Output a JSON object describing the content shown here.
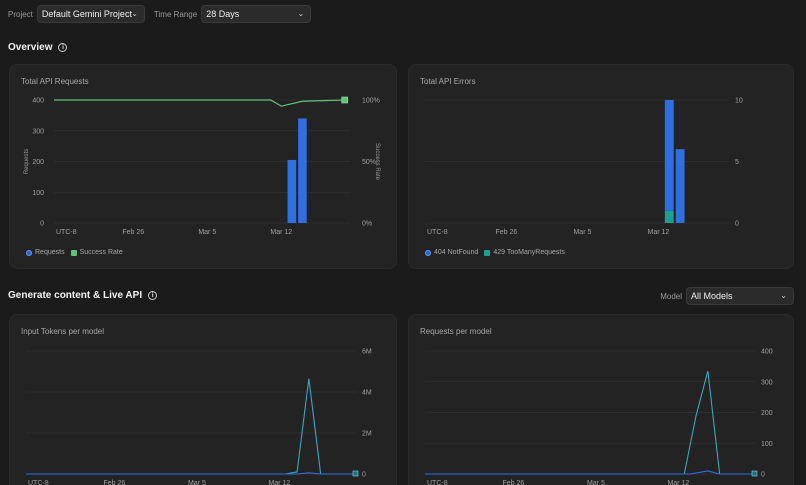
{
  "toolbar": {
    "project_label": "Project",
    "project_value": "Default Gemini Project",
    "range_label": "Time Range",
    "range_value": "28 Days"
  },
  "overview": {
    "title": "Overview"
  },
  "generate": {
    "title": "Generate content & Live API",
    "model_label": "Model",
    "model_value": "All Models"
  },
  "colors": {
    "requests": "#2f6fe0",
    "success": "#5fc37a",
    "notfound": "#2f6fe0",
    "toomany": "#1f9e94",
    "tokens_line": "#3aa6c0",
    "grid": "#333333"
  },
  "chart_data": [
    {
      "type": "bar",
      "title": "Total API Requests",
      "x_ticks": [
        "UTC-8",
        "Feb 26",
        "Mar 5",
        "Mar 12"
      ],
      "y_ticks": [
        "0",
        "100",
        "200",
        "300",
        "400"
      ],
      "y2_ticks": [
        "0%",
        "50%",
        "100%"
      ],
      "ylabel": "Requests",
      "y2label": "Success Rate",
      "ylim": [
        0,
        400
      ],
      "series": [
        {
          "name": "Requests",
          "points": [
            {
              "x": "Mar 13",
              "y": 205
            },
            {
              "x": "Mar 14",
              "y": 340
            }
          ]
        },
        {
          "name": "Success Rate",
          "type": "line",
          "points": [
            {
              "x": "Feb 19",
              "y": 100
            },
            {
              "x": "Mar 11",
              "y": 100
            },
            {
              "x": "Mar 12",
              "y": 95
            },
            {
              "x": "Mar 14",
              "y": 99
            },
            {
              "x": "Mar 18",
              "y": 100
            }
          ]
        }
      ]
    },
    {
      "type": "bar",
      "title": "Total API Errors",
      "x_ticks": [
        "UTC-8",
        "Feb 26",
        "Mar 5",
        "Mar 12"
      ],
      "y_ticks": [
        "0",
        "5",
        "10"
      ],
      "ylim": [
        0,
        10
      ],
      "series": [
        {
          "name": "404 NotFound",
          "points": [
            {
              "x": "Mar 13",
              "y": 9
            },
            {
              "x": "Mar 14",
              "y": 6
            }
          ]
        },
        {
          "name": "429 TooManyRequests",
          "points": [
            {
              "x": "Mar 13",
              "y": 1
            }
          ]
        }
      ]
    },
    {
      "type": "line",
      "title": "Input Tokens per model",
      "x_ticks": [
        "UTC-8",
        "Feb 26",
        "Mar 5",
        "Mar 12"
      ],
      "y_ticks": [
        "0",
        "2M",
        "4M",
        "6M"
      ],
      "ylim": [
        0,
        6000000
      ],
      "series": [
        {
          "points": [
            {
              "x": 0,
              "y": 0
            },
            {
              "x": 22,
              "y": 0
            },
            {
              "x": 23,
              "y": 100000
            },
            {
              "x": 24,
              "y": 4650000
            },
            {
              "x": 25,
              "y": 0
            },
            {
              "x": 28,
              "y": 0
            }
          ]
        },
        {
          "points": [
            {
              "x": 0,
              "y": 0
            },
            {
              "x": 23,
              "y": 0
            },
            {
              "x": 24,
              "y": 60000
            },
            {
              "x": 25,
              "y": 0
            },
            {
              "x": 28,
              "y": 0
            }
          ]
        }
      ]
    },
    {
      "type": "line",
      "title": "Requests per model",
      "x_ticks": [
        "UTC-8",
        "Feb 26",
        "Mar 5",
        "Mar 12"
      ],
      "y_ticks": [
        "0",
        "100",
        "200",
        "300",
        "400"
      ],
      "ylim": [
        0,
        400
      ],
      "series": [
        {
          "points": [
            {
              "x": 0,
              "y": 0
            },
            {
              "x": 22,
              "y": 0
            },
            {
              "x": 23,
              "y": 190
            },
            {
              "x": 24,
              "y": 335
            },
            {
              "x": 25,
              "y": 0
            },
            {
              "x": 28,
              "y": 0
            }
          ]
        },
        {
          "points": [
            {
              "x": 0,
              "y": 0
            },
            {
              "x": 22.5,
              "y": 0
            },
            {
              "x": 24,
              "y": 10
            },
            {
              "x": 25,
              "y": 0
            },
            {
              "x": 28,
              "y": 0
            }
          ]
        }
      ]
    }
  ]
}
